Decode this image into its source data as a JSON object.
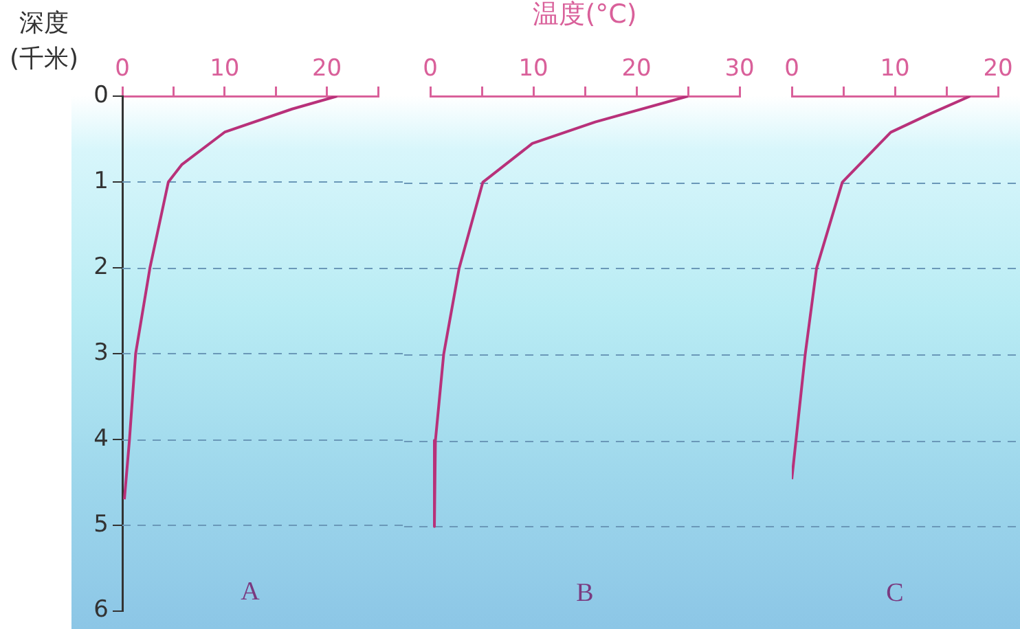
{
  "chart_data": [
    {
      "type": "line",
      "ylabel": "深度\n(千米)",
      "annotations": [
        "A"
      ],
      "xlim": [
        0,
        25
      ],
      "xticks": [
        0,
        {
          "value": 5,
          "label": null
        },
        10,
        {
          "value": 15,
          "label": null
        },
        20,
        {
          "value": 25,
          "label": null
        }
      ],
      "ylim": [
        6,
        0
      ],
      "yticks": [
        0,
        1,
        2,
        3,
        4,
        5,
        6
      ],
      "grid": "y",
      "legend": false,
      "marker": "none",
      "line_style": "solid",
      "series": [
        {
          "color": "#b8317a",
          "x": [
            21,
            16.6,
            10,
            5.8,
            4.5,
            2.7,
            1.3,
            0.7,
            0.2
          ],
          "values": [
            0,
            0.15,
            0.42,
            0.8,
            1,
            2,
            3,
            4,
            4.7
          ]
        }
      ]
    },
    {
      "type": "line",
      "xlabel": "温度(°C)",
      "annotations": [
        "B"
      ],
      "xlim": [
        0,
        30
      ],
      "xticks": [
        0,
        {
          "value": 5,
          "label": null
        },
        10,
        {
          "value": 15,
          "label": null
        },
        20,
        {
          "value": 25,
          "label": null
        },
        30
      ],
      "ylim": [
        6,
        0
      ],
      "yticks": [
        0,
        1,
        2,
        3,
        4,
        5,
        6
      ],
      "tick_labels": "x",
      "grid": "y",
      "legend": false,
      "marker": "none",
      "line_style": "solid",
      "series": [
        {
          "color": "#b8317a",
          "x": [
            25,
            16,
            9.9,
            5.1,
            2.8,
            1.3,
            0.5,
            0.4
          ],
          "values": [
            0,
            0.3,
            0.55,
            1,
            2,
            3,
            4,
            5
          ]
        }
      ]
    },
    {
      "type": "line",
      "annotations": [
        "C"
      ],
      "xlim": [
        0,
        20
      ],
      "xticks": [
        0,
        {
          "value": 5,
          "label": null
        },
        10,
        {
          "value": 15,
          "label": null
        },
        20
      ],
      "ylim": [
        6,
        0
      ],
      "yticks": [
        0,
        1,
        2,
        3,
        4,
        5,
        6
      ],
      "tick_labels": "x",
      "grid": "y",
      "legend": false,
      "marker": "none",
      "line_style": "solid",
      "series": [
        {
          "color": "#b8317a",
          "x": [
            17.3,
            13.5,
            9.6,
            4.9,
            2.4,
            1.3,
            0
          ],
          "values": [
            0,
            0.2,
            0.42,
            1,
            2,
            3,
            4.45
          ]
        }
      ]
    }
  ]
}
